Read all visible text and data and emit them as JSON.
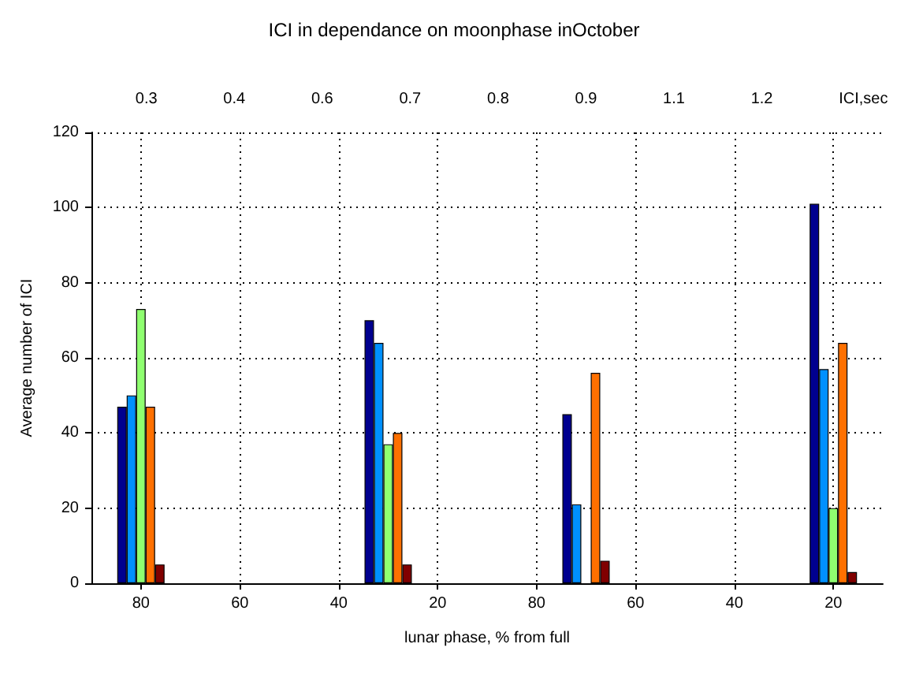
{
  "chart_data": {
    "type": "bar",
    "title": "ICI in dependance on moonphase inOctober",
    "xlabel": "lunar phase, % from full",
    "ylabel": "Average number of ICI",
    "annotations": [
      "0.3",
      "0.4",
      "0.6",
      "0.7",
      "0.8",
      "0.9",
      "1.1",
      "1.2",
      "ICI,sec"
    ],
    "categories": [
      null,
      "80",
      null,
      "60",
      null,
      "40",
      null,
      "20",
      null,
      "80",
      null,
      "60",
      null,
      "40",
      null,
      "20",
      null
    ],
    "ylim": [
      0,
      120
    ],
    "yticks": [
      0,
      20,
      40,
      60,
      80,
      100,
      120
    ],
    "grid": true,
    "series": [
      {
        "color": "#00008f",
        "values": [
          null,
          47,
          null,
          null,
          null,
          null,
          70,
          null,
          null,
          null,
          45,
          null,
          null,
          null,
          null,
          101,
          null
        ]
      },
      {
        "color": "#0090ff",
        "values": [
          null,
          50,
          null,
          null,
          null,
          null,
          64,
          null,
          null,
          null,
          21,
          null,
          null,
          null,
          null,
          57,
          null
        ]
      },
      {
        "color": "#8fff70",
        "values": [
          null,
          73,
          null,
          null,
          null,
          null,
          37,
          null,
          null,
          null,
          null,
          null,
          null,
          null,
          null,
          20,
          null
        ]
      },
      {
        "color": "#ff7000",
        "values": [
          null,
          47,
          null,
          null,
          null,
          null,
          40,
          null,
          null,
          null,
          56,
          null,
          null,
          null,
          null,
          64,
          null
        ]
      },
      {
        "color": "#800000",
        "values": [
          null,
          5,
          null,
          null,
          null,
          null,
          5,
          null,
          null,
          null,
          6,
          null,
          null,
          null,
          null,
          3,
          null
        ]
      }
    ]
  }
}
